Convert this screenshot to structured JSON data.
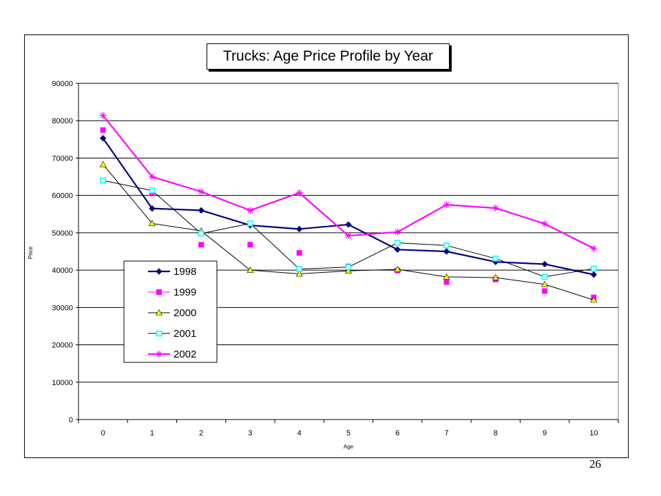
{
  "page_number": "26",
  "chart_data": {
    "type": "line",
    "title": "Trucks: Age Price Profile by Year",
    "xlabel": "Age",
    "ylabel": "Price",
    "categories": [
      "0",
      "1",
      "2",
      "3",
      "4",
      "5",
      "6",
      "7",
      "8",
      "9",
      "10"
    ],
    "ylim": [
      0,
      90000
    ],
    "yticks": [
      "0",
      "10000",
      "20000",
      "30000",
      "40000",
      "50000",
      "60000",
      "70000",
      "80000",
      "90000"
    ],
    "grid": "horizontal",
    "legend_position": "left-lower",
    "series": [
      {
        "name": "1998",
        "color": "#000080",
        "marker": "diamond",
        "weight": "bold",
        "values": [
          75300,
          56500,
          56000,
          52000,
          51000,
          52200,
          45500,
          45000,
          42200,
          41600,
          38800
        ]
      },
      {
        "name": "1999",
        "color": "#ff00ff",
        "marker": "square",
        "weight": "none",
        "values": [
          77500,
          60500,
          46800,
          46800,
          44600,
          41000,
          39900,
          36800,
          37500,
          34400,
          32700
        ]
      },
      {
        "name": "2000",
        "color": "#000000",
        "marker": "triangle",
        "marker_color": "#ffff00",
        "weight": "thin",
        "values": [
          68300,
          52500,
          50500,
          40000,
          39000,
          39800,
          40200,
          38200,
          38000,
          36200,
          32000
        ]
      },
      {
        "name": "2001",
        "color": "#000000",
        "marker": "open-square",
        "marker_color": "#00ffff",
        "weight": "thin",
        "values": [
          64000,
          61300,
          49800,
          52500,
          40300,
          40800,
          47300,
          46600,
          43100,
          38200,
          40400
        ]
      },
      {
        "name": "2002",
        "color": "#ff00ff",
        "marker": "star",
        "weight": "bold",
        "values": [
          81400,
          65000,
          61000,
          56000,
          60700,
          49200,
          50200,
          57500,
          56600,
          52400,
          45800
        ]
      }
    ]
  }
}
